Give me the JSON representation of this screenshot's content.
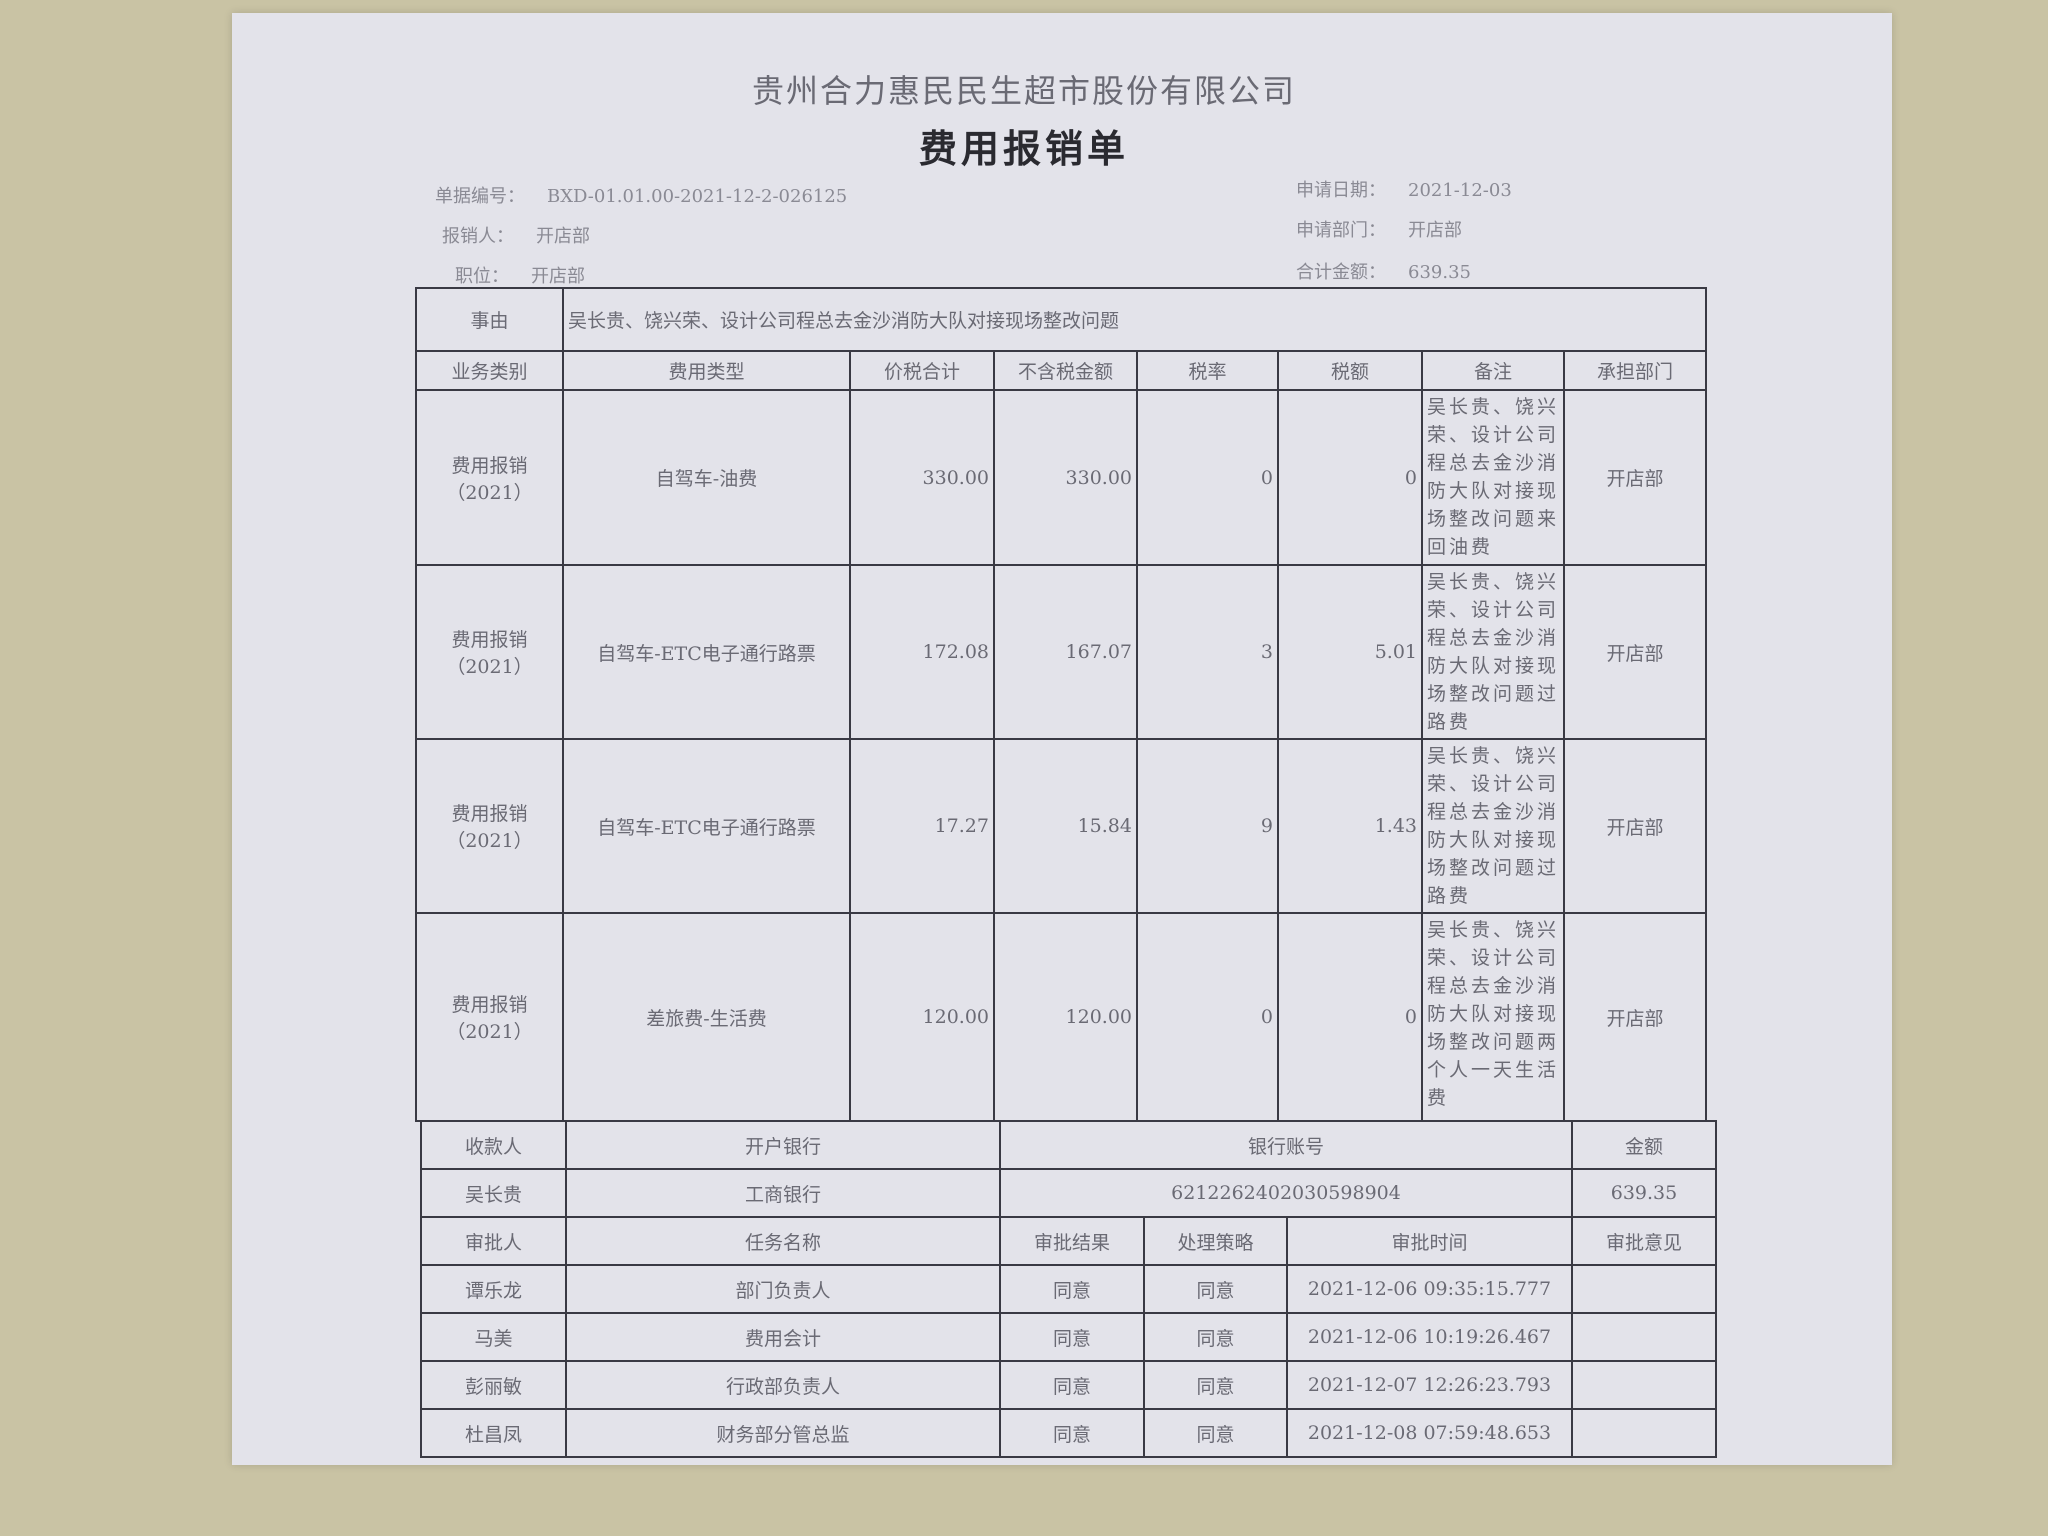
{
  "company": "贵州合力惠民民生超市股份有限公司",
  "title": "费用报销单",
  "info": {
    "doc_no_label": "单据编号：",
    "doc_no": "BXD-01.01.00-2021-12-2-026125",
    "claimant_label": "报销人：",
    "claimant": "开店部",
    "position_label": "职位：",
    "position": "开店部",
    "date_label": "申请日期：",
    "date": "2021-12-03",
    "dept_label": "申请部门：",
    "dept": "开店部",
    "total_label": "合计金额：",
    "total": "639.35"
  },
  "reason_label": "事由",
  "reason": "吴长贵、饶兴荣、设计公司程总去金沙消防大队对接现场整改问题",
  "columns": [
    "业务类别",
    "费用类型",
    "价税合计",
    "不含税金额",
    "税率",
    "税额",
    "备注",
    "承担部门"
  ],
  "rows": [
    {
      "category": "费用报销（2021）",
      "type": "自驾车-油费",
      "total": "330.00",
      "net": "330.00",
      "rate": "0",
      "tax": "0",
      "note": "吴长贵、饶兴荣、设计公司程总去金沙消防大队对接现场整改问题来回油费",
      "dept": "开店部"
    },
    {
      "category": "费用报销（2021）",
      "type": "自驾车-ETC电子通行路票",
      "total": "172.08",
      "net": "167.07",
      "rate": "3",
      "tax": "5.01",
      "note": "吴长贵、饶兴荣、设计公司程总去金沙消防大队对接现场整改问题过路费",
      "dept": "开店部"
    },
    {
      "category": "费用报销（2021）",
      "type": "自驾车-ETC电子通行路票",
      "total": "17.27",
      "net": "15.84",
      "rate": "9",
      "tax": "1.43",
      "note": "吴长贵、饶兴荣、设计公司程总去金沙消防大队对接现场整改问题过路费",
      "dept": "开店部"
    },
    {
      "category": "费用报销（2021）",
      "type": "差旅费-生活费",
      "total": "120.00",
      "net": "120.00",
      "rate": "0",
      "tax": "0",
      "note": "吴长贵、饶兴荣、设计公司程总去金沙消防大队对接现场整改问题两个人一天生活费",
      "dept": "开店部"
    }
  ],
  "payment": {
    "headers": [
      "收款人",
      "开户银行",
      "银行账号",
      "金额"
    ],
    "payee": "吴长贵",
    "bank": "工商银行",
    "account": "6212262402030598904",
    "amount": "639.35"
  },
  "approval": {
    "headers": [
      "审批人",
      "任务名称",
      "审批结果",
      "处理策略",
      "审批时间",
      "审批意见"
    ],
    "rows": [
      {
        "approver": "谭乐龙",
        "task": "部门负责人",
        "result": "同意",
        "strategy": "同意",
        "time": "2021-12-06 09:35:15.777",
        "opinion": ""
      },
      {
        "approver": "马美",
        "task": "费用会计",
        "result": "同意",
        "strategy": "同意",
        "time": "2021-12-06 10:19:26.467",
        "opinion": ""
      },
      {
        "approver": "彭丽敏",
        "task": "行政部负责人",
        "result": "同意",
        "strategy": "同意",
        "time": "2021-12-07 12:26:23.793",
        "opinion": ""
      },
      {
        "approver": "杜昌凤",
        "task": "财务部分管总监",
        "result": "同意",
        "strategy": "同意",
        "time": "2021-12-08 07:59:48.653",
        "opinion": ""
      }
    ]
  }
}
